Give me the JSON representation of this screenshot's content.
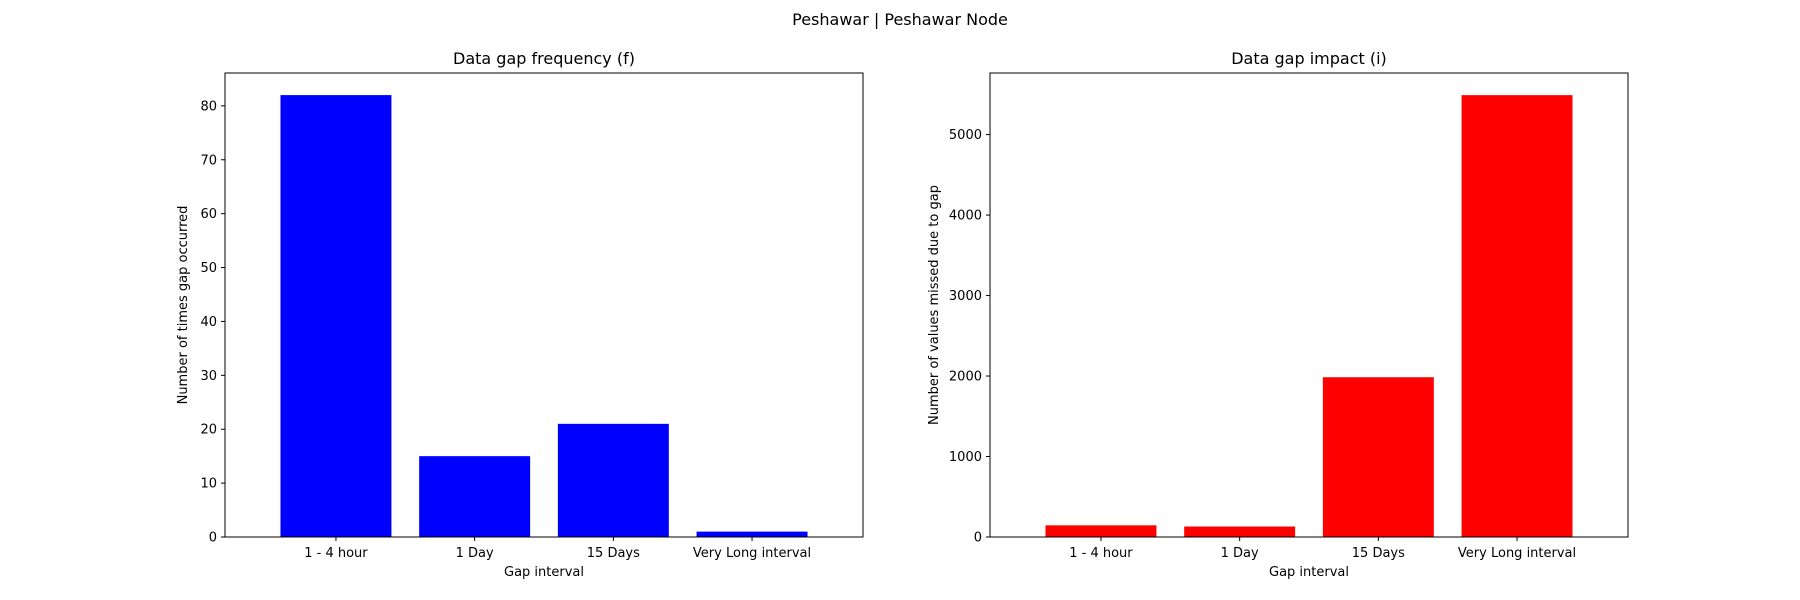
{
  "figure": {
    "suptitle": "Peshawar | Peshawar Node"
  },
  "chart_data": [
    {
      "type": "bar",
      "title": "Data gap frequency (f)",
      "xlabel": "Gap interval",
      "ylabel": "Number of times gap occurred",
      "categories": [
        "1 - 4 hour",
        "1 Day",
        "15 Days",
        "Very Long interval"
      ],
      "values": [
        82,
        15,
        21,
        1
      ],
      "ylim": [
        0,
        86.1
      ],
      "yticks": [
        0,
        10,
        20,
        30,
        40,
        50,
        60,
        70,
        80
      ],
      "color": "#0000ff",
      "grid": false
    },
    {
      "type": "bar",
      "title": "Data gap impact (i)",
      "xlabel": "Gap interval",
      "ylabel": "Number of values missed due to gap",
      "categories": [
        "1 - 4 hour",
        "1 Day",
        "15 Days",
        "Very Long interval"
      ],
      "values": [
        145,
        130,
        1985,
        5490
      ],
      "ylim": [
        0,
        5765
      ],
      "yticks": [
        0,
        1000,
        2000,
        3000,
        4000,
        5000
      ],
      "color": "#ff0000",
      "grid": false
    }
  ]
}
